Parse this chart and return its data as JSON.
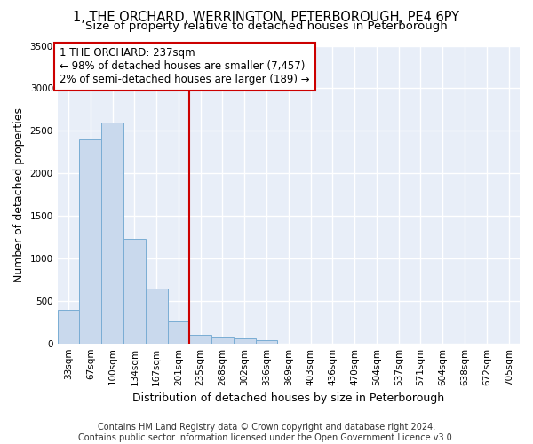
{
  "title": "1, THE ORCHARD, WERRINGTON, PETERBOROUGH, PE4 6PY",
  "subtitle": "Size of property relative to detached houses in Peterborough",
  "xlabel": "Distribution of detached houses by size in Peterborough",
  "ylabel": "Number of detached properties",
  "footer_line1": "Contains HM Land Registry data © Crown copyright and database right 2024.",
  "footer_line2": "Contains public sector information licensed under the Open Government Licence v3.0.",
  "categories": [
    "33sqm",
    "67sqm",
    "100sqm",
    "134sqm",
    "167sqm",
    "201sqm",
    "235sqm",
    "268sqm",
    "302sqm",
    "336sqm",
    "369sqm",
    "403sqm",
    "436sqm",
    "470sqm",
    "504sqm",
    "537sqm",
    "571sqm",
    "604sqm",
    "638sqm",
    "672sqm",
    "705sqm"
  ],
  "values": [
    390,
    2400,
    2600,
    1230,
    640,
    255,
    100,
    70,
    60,
    40,
    0,
    0,
    0,
    0,
    0,
    0,
    0,
    0,
    0,
    0,
    0
  ],
  "bar_color": "#c9d9ed",
  "bar_edge_color": "#7aadd4",
  "vline_x_index": 6,
  "vline_color": "#cc0000",
  "annotation_text": "1 THE ORCHARD: 237sqm\n← 98% of detached houses are smaller (7,457)\n2% of semi-detached houses are larger (189) →",
  "annotation_box_color": "#ffffff",
  "annotation_box_edge_color": "#cc0000",
  "ylim": [
    0,
    3500
  ],
  "yticks": [
    0,
    500,
    1000,
    1500,
    2000,
    2500,
    3000,
    3500
  ],
  "background_color": "#e8eef8",
  "grid_color": "#ffffff",
  "title_fontsize": 10.5,
  "subtitle_fontsize": 9.5,
  "axis_label_fontsize": 9,
  "tick_fontsize": 7.5,
  "footer_fontsize": 7.0
}
